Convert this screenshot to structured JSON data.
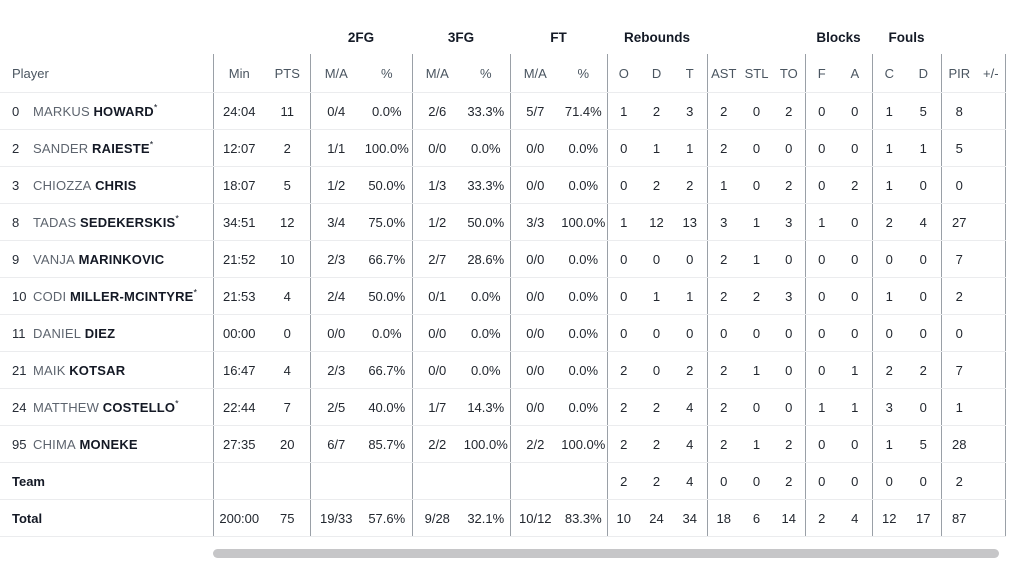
{
  "colors": {
    "group_text": "#141a26",
    "header_text": "#4a5560",
    "first_name_text": "#5d646e",
    "last_name_text": "#141925",
    "value_text": "#22272f",
    "column_divider": "#9aa0a7",
    "row_divider": "#ebecee",
    "scrollbar_thumb": "#c6c6c8"
  },
  "starter_mark": "*",
  "header": {
    "groups": [
      {
        "label": "",
        "span": 3
      },
      {
        "label": "2FG",
        "span": 2
      },
      {
        "label": "3FG",
        "span": 2
      },
      {
        "label": "FT",
        "span": 2
      },
      {
        "label": "Rebounds",
        "span": 3
      },
      {
        "label": "",
        "span": 3
      },
      {
        "label": "Blocks",
        "span": 2
      },
      {
        "label": "Fouls",
        "span": 2
      },
      {
        "label": "",
        "span": 2
      }
    ],
    "columns": [
      "Player",
      "Min",
      "PTS",
      "M/A",
      "%",
      "M/A",
      "%",
      "M/A",
      "%",
      "O",
      "D",
      "T",
      "AST",
      "STL",
      "TO",
      "F",
      "A",
      "C",
      "D",
      "PIR",
      "+/-"
    ]
  },
  "rows": [
    {
      "number": "0",
      "first": "MARKUS",
      "last": "HOWARD",
      "starter": true,
      "stats": [
        "24:04",
        "11",
        "0/4",
        "0.0%",
        "2/6",
        "33.3%",
        "5/7",
        "71.4%",
        "1",
        "2",
        "3",
        "2",
        "0",
        "2",
        "0",
        "0",
        "1",
        "5",
        "8",
        ""
      ]
    },
    {
      "number": "2",
      "first": "SANDER",
      "last": "RAIESTE",
      "starter": true,
      "stats": [
        "12:07",
        "2",
        "1/1",
        "100.0%",
        "0/0",
        "0.0%",
        "0/0",
        "0.0%",
        "0",
        "1",
        "1",
        "2",
        "0",
        "0",
        "0",
        "0",
        "1",
        "1",
        "5",
        ""
      ]
    },
    {
      "number": "3",
      "first": "CHIOZZA",
      "last": "CHRIS",
      "starter": false,
      "stats": [
        "18:07",
        "5",
        "1/2",
        "50.0%",
        "1/3",
        "33.3%",
        "0/0",
        "0.0%",
        "0",
        "2",
        "2",
        "1",
        "0",
        "2",
        "0",
        "2",
        "1",
        "0",
        "0",
        ""
      ]
    },
    {
      "number": "8",
      "first": "TADAS",
      "last": "SEDEKERSKIS",
      "starter": true,
      "stats": [
        "34:51",
        "12",
        "3/4",
        "75.0%",
        "1/2",
        "50.0%",
        "3/3",
        "100.0%",
        "1",
        "12",
        "13",
        "3",
        "1",
        "3",
        "1",
        "0",
        "2",
        "4",
        "27",
        ""
      ]
    },
    {
      "number": "9",
      "first": "VANJA",
      "last": "MARINKOVIC",
      "starter": false,
      "stats": [
        "21:52",
        "10",
        "2/3",
        "66.7%",
        "2/7",
        "28.6%",
        "0/0",
        "0.0%",
        "0",
        "0",
        "0",
        "2",
        "1",
        "0",
        "0",
        "0",
        "0",
        "0",
        "7",
        ""
      ]
    },
    {
      "number": "10",
      "first": "CODI",
      "last": "MILLER-MCINTYRE",
      "starter": true,
      "stats": [
        "21:53",
        "4",
        "2/4",
        "50.0%",
        "0/1",
        "0.0%",
        "0/0",
        "0.0%",
        "0",
        "1",
        "1",
        "2",
        "2",
        "3",
        "0",
        "0",
        "1",
        "0",
        "2",
        ""
      ]
    },
    {
      "number": "11",
      "first": "DANIEL",
      "last": "DIEZ",
      "starter": false,
      "stats": [
        "00:00",
        "0",
        "0/0",
        "0.0%",
        "0/0",
        "0.0%",
        "0/0",
        "0.0%",
        "0",
        "0",
        "0",
        "0",
        "0",
        "0",
        "0",
        "0",
        "0",
        "0",
        "0",
        ""
      ]
    },
    {
      "number": "21",
      "first": "MAIK",
      "last": "KOTSAR",
      "starter": false,
      "stats": [
        "16:47",
        "4",
        "2/3",
        "66.7%",
        "0/0",
        "0.0%",
        "0/0",
        "0.0%",
        "2",
        "0",
        "2",
        "2",
        "1",
        "0",
        "0",
        "1",
        "2",
        "2",
        "7",
        ""
      ]
    },
    {
      "number": "24",
      "first": "MATTHEW",
      "last": "COSTELLO",
      "starter": true,
      "stats": [
        "22:44",
        "7",
        "2/5",
        "40.0%",
        "1/7",
        "14.3%",
        "0/0",
        "0.0%",
        "2",
        "2",
        "4",
        "2",
        "0",
        "0",
        "1",
        "1",
        "3",
        "0",
        "1",
        ""
      ]
    },
    {
      "number": "95",
      "first": "CHIMA",
      "last": "MONEKE",
      "starter": false,
      "stats": [
        "27:35",
        "20",
        "6/7",
        "85.7%",
        "2/2",
        "100.0%",
        "2/2",
        "100.0%",
        "2",
        "2",
        "4",
        "2",
        "1",
        "2",
        "0",
        "0",
        "1",
        "5",
        "28",
        ""
      ]
    }
  ],
  "team_row": {
    "label": "Team",
    "stats": [
      "",
      "",
      "",
      "",
      "",
      "",
      "",
      "",
      "2",
      "2",
      "4",
      "0",
      "0",
      "2",
      "0",
      "0",
      "0",
      "0",
      "2",
      ""
    ]
  },
  "total_row": {
    "label": "Total",
    "stats": [
      "200:00",
      "75",
      "19/33",
      "57.6%",
      "9/28",
      "32.1%",
      "10/12",
      "83.3%",
      "10",
      "24",
      "34",
      "18",
      "6",
      "14",
      "2",
      "4",
      "12",
      "17",
      "87",
      ""
    ]
  }
}
